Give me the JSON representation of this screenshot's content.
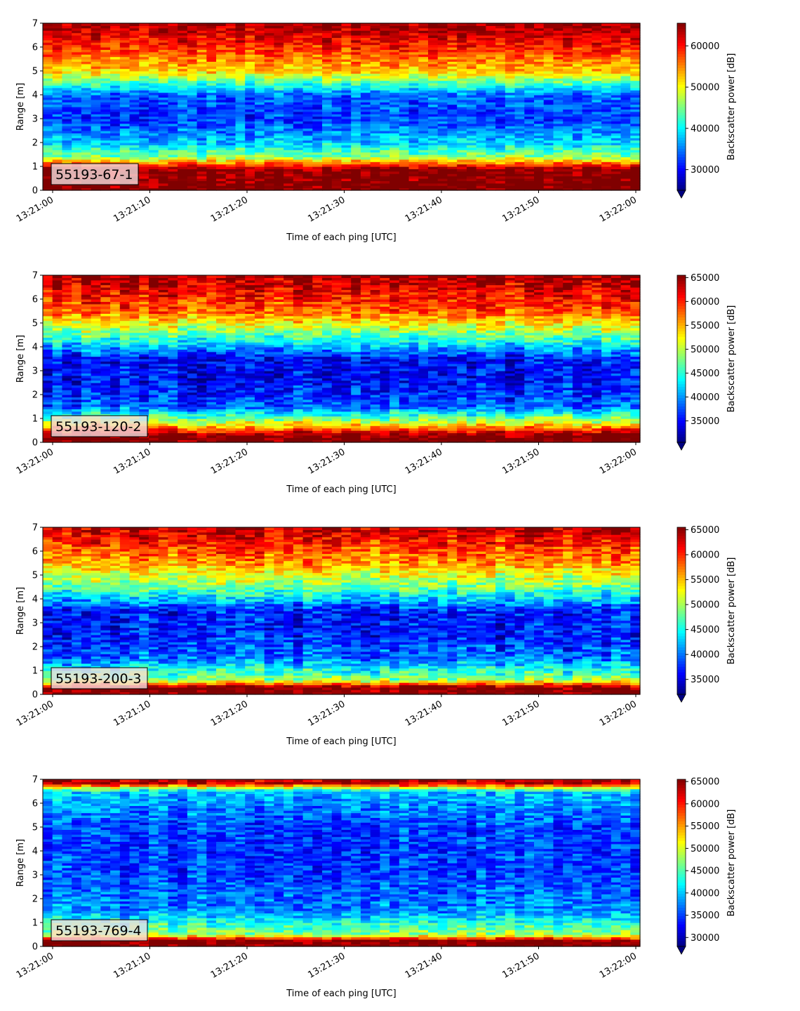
{
  "chart_data": [
    {
      "type": "heatmap",
      "label": "55193-67-1",
      "xlabel": "Time of each ping [UTC]",
      "ylabel": "Range [m]",
      "xticks": [
        "13:21:00",
        "13:21:10",
        "13:21:20",
        "13:21:30",
        "13:21:40",
        "13:21:50",
        "13:22:00"
      ],
      "yticks": [
        "0",
        "1",
        "2",
        "3",
        "4",
        "5",
        "6",
        "7"
      ],
      "ylim": [
        0,
        7
      ],
      "colormap": "jet",
      "colorbar": {
        "label": "Backscatter power [dB]",
        "range": [
          25000,
          65500
        ],
        "ticks": [
          "30000",
          "40000",
          "50000",
          "60000"
        ],
        "tick_values": [
          30000,
          40000,
          50000,
          60000
        ]
      },
      "profile": {
        "description_levels": [
          {
            "range_m": 0.3,
            "value": 66000
          },
          {
            "range_m": 0.9,
            "value": 65000
          },
          {
            "range_m": 1.4,
            "value": 46000
          },
          {
            "range_m": 2.0,
            "value": 38000
          },
          {
            "range_m": 3.0,
            "value": 32000
          },
          {
            "range_m": 4.0,
            "value": 34000
          },
          {
            "range_m": 5.0,
            "value": 52000
          },
          {
            "range_m": 6.0,
            "value": 59000
          },
          {
            "range_m": 6.9,
            "value": 64000
          }
        ]
      }
    },
    {
      "type": "heatmap",
      "label": "55193-120-2",
      "xlabel": "Time of each ping [UTC]",
      "ylabel": "Range [m]",
      "xticks": [
        "13:21:00",
        "13:21:10",
        "13:21:20",
        "13:21:30",
        "13:21:40",
        "13:21:50",
        "13:22:00"
      ],
      "yticks": [
        "0",
        "1",
        "2",
        "3",
        "4",
        "5",
        "6",
        "7"
      ],
      "ylim": [
        0,
        7
      ],
      "colormap": "jet",
      "colorbar": {
        "label": "Backscatter power [dB]",
        "range": [
          30500,
          65500
        ],
        "ticks": [
          "35000",
          "40000",
          "45000",
          "50000",
          "55000",
          "60000",
          "65000"
        ],
        "tick_values": [
          35000,
          40000,
          45000,
          50000,
          55000,
          60000,
          65000
        ]
      },
      "profile": {
        "description_levels": [
          {
            "range_m": 0.3,
            "value": 66000
          },
          {
            "range_m": 0.8,
            "value": 52000
          },
          {
            "range_m": 1.5,
            "value": 38000
          },
          {
            "range_m": 2.5,
            "value": 35000
          },
          {
            "range_m": 3.5,
            "value": 35000
          },
          {
            "range_m": 4.5,
            "value": 47000
          },
          {
            "range_m": 5.5,
            "value": 58000
          },
          {
            "range_m": 6.9,
            "value": 64000
          }
        ]
      }
    },
    {
      "type": "heatmap",
      "label": "55193-200-3",
      "xlabel": "Time of each ping [UTC]",
      "ylabel": "Range [m]",
      "xticks": [
        "13:21:00",
        "13:21:10",
        "13:21:20",
        "13:21:30",
        "13:21:40",
        "13:21:50",
        "13:22:00"
      ],
      "yticks": [
        "0",
        "1",
        "2",
        "3",
        "4",
        "5",
        "6",
        "7"
      ],
      "ylim": [
        0,
        7
      ],
      "colormap": "jet",
      "colorbar": {
        "label": "Backscatter power [dB]",
        "range": [
          32000,
          65500
        ],
        "ticks": [
          "35000",
          "40000",
          "45000",
          "50000",
          "55000",
          "60000",
          "65000"
        ],
        "tick_values": [
          35000,
          40000,
          45000,
          50000,
          55000,
          60000,
          65000
        ]
      },
      "profile": {
        "description_levels": [
          {
            "range_m": 0.3,
            "value": 66000
          },
          {
            "range_m": 0.6,
            "value": 50000
          },
          {
            "range_m": 1.5,
            "value": 40000
          },
          {
            "range_m": 2.5,
            "value": 37000
          },
          {
            "range_m": 3.5,
            "value": 37000
          },
          {
            "range_m": 4.5,
            "value": 48000
          },
          {
            "range_m": 5.5,
            "value": 56000
          },
          {
            "range_m": 6.9,
            "value": 63000
          }
        ]
      }
    },
    {
      "type": "heatmap",
      "label": "55193-769-4",
      "xlabel": "Time of each ping [UTC]",
      "ylabel": "Range [m]",
      "xticks": [
        "13:21:00",
        "13:21:10",
        "13:21:20",
        "13:21:30",
        "13:21:40",
        "13:21:50",
        "13:22:00"
      ],
      "yticks": [
        "0",
        "1",
        "2",
        "3",
        "4",
        "5",
        "6",
        "7"
      ],
      "ylim": [
        0,
        7
      ],
      "colormap": "jet",
      "colorbar": {
        "label": "Backscatter power [dB]",
        "range": [
          28000,
          65500
        ],
        "ticks": [
          "30000",
          "35000",
          "40000",
          "45000",
          "50000",
          "55000",
          "60000",
          "65000"
        ],
        "tick_values": [
          30000,
          35000,
          40000,
          45000,
          50000,
          55000,
          60000,
          65000
        ]
      },
      "profile": {
        "description_levels": [
          {
            "range_m": 0.25,
            "value": 66000
          },
          {
            "range_m": 0.5,
            "value": 48000
          },
          {
            "range_m": 1.5,
            "value": 38000
          },
          {
            "range_m": 3.0,
            "value": 35000
          },
          {
            "range_m": 5.0,
            "value": 35000
          },
          {
            "range_m": 6.5,
            "value": 40000
          },
          {
            "range_m": 6.85,
            "value": 63000
          }
        ]
      }
    }
  ]
}
